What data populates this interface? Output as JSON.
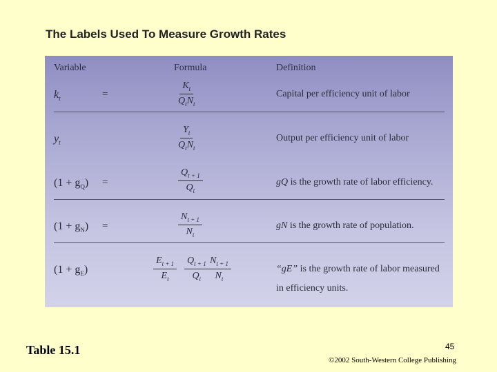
{
  "slide": {
    "title": "The Labels Used To Measure Growth Rates",
    "table_label": "Table 15.1",
    "page_number": "45",
    "copyright": "©2002 South-Western College Publishing"
  },
  "table": {
    "headers": [
      "Variable",
      "Formula",
      "Definition"
    ],
    "rows": [
      {
        "variable": "k",
        "variable_sub": "t",
        "equals": "=",
        "num": "K",
        "num_sub": "t",
        "den": "Q",
        "den_sub1": "t",
        "den2": "N",
        "den_sub2": "t",
        "definition": "Capital per efficiency unit of labor"
      },
      {
        "variable": "y",
        "variable_sub": "t",
        "equals": "",
        "num": "Y",
        "num_sub": "t",
        "den": "Q",
        "den_sub1": "t",
        "den2": "N",
        "den_sub2": "t",
        "definition": "Output per efficiency unit of labor"
      },
      {
        "variable": "(1 + g",
        "variable_sub": "Q",
        "equals": "=",
        "num": "Q",
        "num_sub": "t + 1",
        "den": "Q",
        "den_sub": "t",
        "definition_var": "gQ",
        "definition": " is the growth rate of labor efficiency."
      },
      {
        "variable": "(1 + g",
        "variable_sub": "N",
        "equals": "=",
        "num": "N",
        "num_sub": "t + 1",
        "den": "N",
        "den_sub": "t",
        "definition_var": "gN",
        "definition": " is the growth rate of population."
      },
      {
        "variable": "(1 + g",
        "variable_sub": "E",
        "equals": "",
        "frac1_num": "E",
        "frac1_num_sub": "t + 1",
        "frac1_den": "E",
        "frac1_den_sub": "t",
        "frac2_num": "Q",
        "frac2_num_sub": "t + 1",
        "frac2_den": "Q",
        "frac2_den_sub": "t",
        "frac3_num": "N",
        "frac3_num_sub": "t + 1",
        "frac3_den": "N",
        "frac3_den_sub": "t",
        "definition_var": "“gE”",
        "definition": " is the growth rate of labor measured",
        "definition_line2": "in efficiency units."
      }
    ]
  }
}
